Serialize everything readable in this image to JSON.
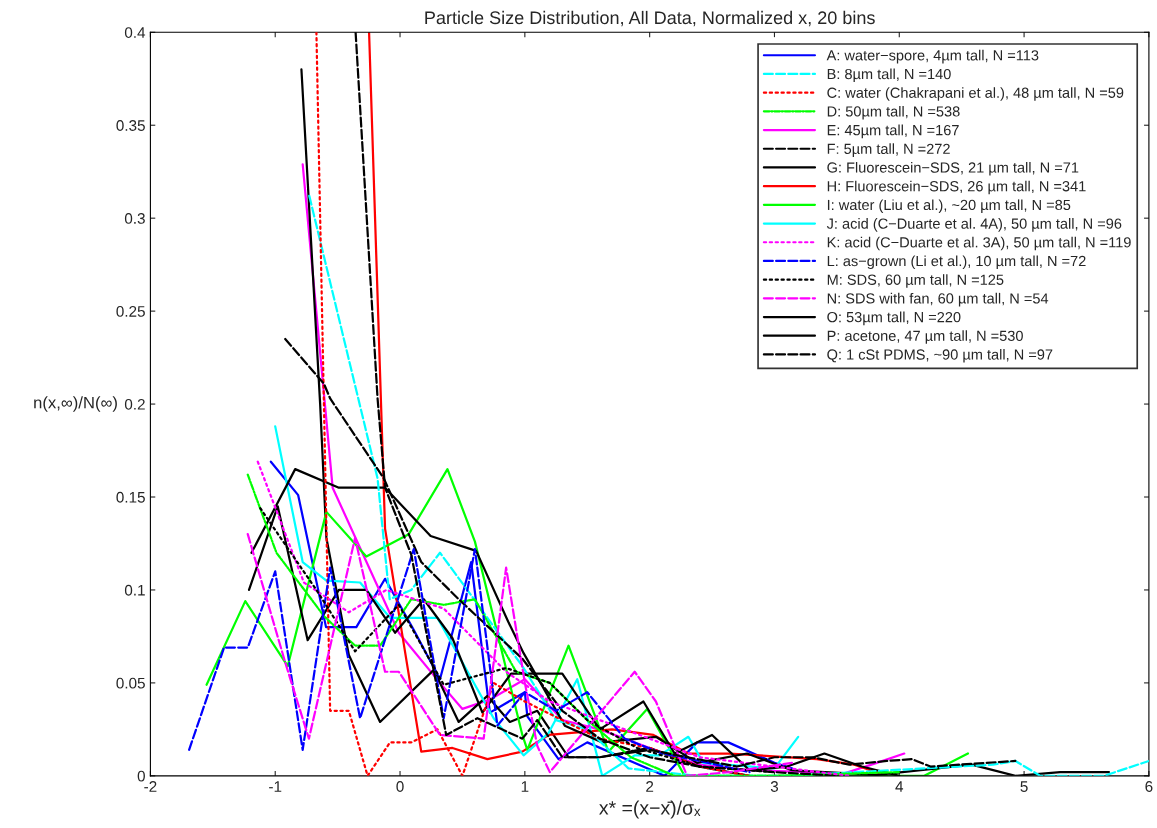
{
  "chart_data": {
    "type": "line",
    "title": "Particle Size Distribution, All Data, Normalized x, 20 bins",
    "xlabel": "x* =(x−x̄)/σₓ",
    "ylabel": "n(x,∞)/N(∞)",
    "xlim": [
      -2,
      6
    ],
    "xticks": [
      -2,
      -1,
      0,
      1,
      2,
      3,
      4,
      5,
      6
    ],
    "ylim": [
      0,
      0.4
    ],
    "yticks": [
      0,
      0.05,
      0.1,
      0.15,
      0.2,
      0.25,
      0.3,
      0.35,
      0.4
    ],
    "grid": false,
    "legend": "top right",
    "series": [
      {
        "name": "A: water−spore, 4µm tall, N =113",
        "color": "#0000ff",
        "line_style": "solid",
        "x": [
          -1.035,
          -0.816,
          -0.593,
          -0.35,
          -0.12,
          0.106,
          0.32,
          0.57,
          0.72,
          1.0,
          1.02,
          1.27,
          1.5,
          2.12,
          2.38,
          2.63,
          3.0,
          3.14
        ],
        "values": [
          0.169,
          0.151,
          0.08,
          0.08,
          0.106,
          0.079,
          0.052,
          0.115,
          0.034,
          0.045,
          0.032,
          0.009,
          0.018,
          0,
          0.018,
          0.018,
          0.007,
          0.004
        ]
      },
      {
        "name": "B: 8µm tall, N =140",
        "color": "#00ffff",
        "line_style": "dashed",
        "x": [
          -0.727,
          -0.18,
          -0.083,
          0.09,
          0.32,
          0.55,
          0.98,
          1.25,
          1.5,
          1.83,
          2.38,
          3.1,
          4.75,
          4.93,
          5.13,
          5.64,
          6.0
        ],
        "values": [
          0.312,
          0.16,
          0.095,
          0.1,
          0.12,
          0.099,
          0.059,
          0.03,
          0.025,
          0.004,
          0,
          0,
          0.006,
          0.008,
          0,
          0,
          0.008
        ]
      },
      {
        "name": "C: water (Chakrapani et al.), 48 µm tall, N =59",
        "color": "#ff0000",
        "line_style": "dotted",
        "x": [
          -0.67,
          -0.56,
          -0.41,
          -0.26,
          -0.08,
          0.09,
          0.3,
          0.5,
          0.75,
          1.0,
          1.3,
          1.6,
          2.0,
          2.4,
          2.8
        ],
        "values": [
          0.4,
          0.035,
          0.035,
          0,
          0.018,
          0.018,
          0.025,
          0,
          0.05,
          0.04,
          0.03,
          0.02,
          0.015,
          0.005,
          0
        ]
      },
      {
        "name": "D: 50µm tall, N =538",
        "color": "#00ff00",
        "line_style": "dashdot",
        "x": [
          -1.22,
          -0.99,
          -0.61,
          -0.36,
          -0.16,
          0.09,
          0.35,
          0.6,
          0.93,
          1.2,
          1.5,
          1.85,
          2.2,
          3.0,
          4.0
        ],
        "values": [
          0.162,
          0.12,
          0.086,
          0.07,
          0.07,
          0.095,
          0.092,
          0.095,
          0.056,
          0.05,
          0.03,
          0.01,
          0,
          0,
          0.002
        ]
      },
      {
        "name": "E: 45µm tall, N =167",
        "color": "#ff00ff",
        "line_style": "solid",
        "x": [
          -0.78,
          -0.54,
          -0.01,
          0.32,
          0.5,
          0.72,
          1.0,
          1.3,
          1.6,
          2.0,
          2.4,
          2.8,
          3.3,
          3.5,
          3.82,
          4.04
        ],
        "values": [
          0.329,
          0.155,
          0.077,
          0.05,
          0.036,
          0.041,
          0.052,
          0.03,
          0.025,
          0.015,
          0.006,
          0.003,
          0.002,
          0,
          0.007,
          0.012
        ]
      },
      {
        "name": "F: 5µm tall, N =272",
        "color": "#000000",
        "line_style": "dashed",
        "x": [
          -0.92,
          -0.61,
          -0.56,
          -0.13,
          0.17,
          0.47,
          0.98,
          1.3,
          1.6,
          2.0,
          2.4,
          3.0,
          3.5
        ],
        "values": [
          0.235,
          0.211,
          0.203,
          0.16,
          0.115,
          0.095,
          0.063,
          0.035,
          0.02,
          0.01,
          0.005,
          0.002,
          0
        ]
      },
      {
        "name": "G: Fluorescein−SDS, 21 µm tall, N =71",
        "color": "#000000",
        "line_style": "solid",
        "x": [
          -0.79,
          -0.64,
          -0.59,
          -0.41,
          -0.16,
          0.27,
          0.47,
          0.7,
          0.88,
          1.1,
          1.35,
          1.6,
          2.0,
          2.4,
          2.8
        ],
        "values": [
          0.38,
          0.2,
          0.128,
          0.065,
          0.029,
          0.057,
          0.029,
          0.043,
          0.029,
          0.035,
          0.01,
          0.01,
          0.015,
          0.005,
          0
        ]
      },
      {
        "name": "H: Fluorescein−SDS, 26 µm tall, N =341",
        "color": "#ff0000",
        "line_style": "solid",
        "x": [
          -0.248,
          -0.12,
          0.17,
          0.42,
          0.7,
          0.98,
          1.19,
          1.7,
          2.03,
          2.31,
          2.64,
          3.34,
          3.64,
          3.9
        ],
        "values": [
          0.4,
          0.133,
          0.013,
          0.015,
          0.009,
          0.013,
          0.022,
          0.025,
          0.022,
          0.012,
          0.012,
          0.009,
          0.006,
          0
        ]
      },
      {
        "name": "I: water (Liu et al.), ~20 µm tall, N =85",
        "color": "#00ff00",
        "line_style": "solid",
        "x": [
          -1.55,
          -1.24,
          -0.9,
          -0.59,
          -0.27,
          0.07,
          0.38,
          0.6,
          0.98,
          1.02,
          1.35,
          1.67,
          1.98,
          2.28,
          3.0,
          4.2,
          4.55
        ],
        "values": [
          0.049,
          0.094,
          0.059,
          0.142,
          0.118,
          0.13,
          0.165,
          0.126,
          0.022,
          0.014,
          0.07,
          0.013,
          0.036,
          0,
          0,
          0,
          0.012
        ]
      },
      {
        "name": "J: acid (C−Duarte et al. 4A), 50 µm tall, N =96",
        "color": "#00ffff",
        "line_style": "solid",
        "x": [
          -1.0,
          -0.78,
          -0.59,
          -0.32,
          -0.08,
          0.3,
          0.75,
          0.99,
          1.19,
          1.42,
          1.62,
          1.88,
          2.08,
          2.31,
          2.43,
          3.0,
          3.19
        ],
        "values": [
          0.188,
          0.115,
          0.105,
          0.104,
          0.085,
          0.085,
          0.031,
          0.011,
          0.023,
          0.052,
          0,
          0.011,
          0.011,
          0.021,
          0.007,
          0.004,
          0.021
        ]
      },
      {
        "name": "K: acid (C−Duarte et al. 3A), 50 µm tall, N =119",
        "color": "#ff00ff",
        "line_style": "dotted",
        "x": [
          -1.14,
          -0.77,
          -0.41,
          -0.11,
          0.35,
          0.85,
          1.2,
          1.6,
          2.0,
          2.4,
          3.0,
          3.6
        ],
        "values": [
          0.169,
          0.104,
          0.088,
          0.1,
          0.09,
          0.056,
          0.04,
          0.03,
          0.02,
          0.01,
          0.005,
          0
        ]
      },
      {
        "name": "L: as−grown (Li et al.), 10 µm tall, N =72",
        "color": "#0000ff",
        "line_style": "dashed",
        "x": [
          -1.69,
          -1.41,
          -1.22,
          -1.0,
          -0.78,
          -0.56,
          -0.32,
          0.11,
          0.35,
          0.6,
          0.78,
          1.0,
          1.25,
          1.5,
          1.8,
          2.1,
          2.4,
          2.8
        ],
        "values": [
          0.014,
          0.069,
          0.069,
          0.11,
          0.014,
          0.112,
          0.031,
          0.122,
          0.031,
          0.122,
          0.027,
          0.045,
          0.035,
          0.045,
          0.02,
          0.012,
          0.008,
          0.002
        ]
      },
      {
        "name": "M: SDS, 60 µm tall, N =125",
        "color": "#000000",
        "line_style": "dotted",
        "x": [
          -1.12,
          -0.66,
          -0.36,
          -0.01,
          0.35,
          0.85,
          1.2,
          1.5,
          1.9,
          2.4,
          3.0
        ],
        "values": [
          0.144,
          0.099,
          0.067,
          0.092,
          0.049,
          0.058,
          0.05,
          0.03,
          0.015,
          0.005,
          0.002
        ]
      },
      {
        "name": "N: SDS with fan, 60 µm tall, N =54",
        "color": "#ff00ff",
        "line_style": "dashed",
        "x": [
          -1.22,
          -0.92,
          -0.73,
          -0.36,
          -0.12,
          -0.01,
          0.32,
          0.67,
          0.85,
          1.0,
          1.1,
          1.2,
          1.88,
          2.05,
          2.3,
          2.64,
          3.14
        ],
        "values": [
          0.13,
          0.061,
          0.02,
          0.128,
          0.056,
          0.056,
          0.022,
          0.02,
          0.112,
          0.05,
          0.016,
          0.002,
          0.056,
          0.04,
          0,
          0.002,
          0.007
        ]
      },
      {
        "name": "O: 53µm tall, N =220",
        "color": "#000000",
        "line_style": "solid",
        "x": [
          -1.21,
          -0.98,
          -0.74,
          -0.49,
          -0.27,
          -0.04,
          0.19,
          0.42,
          0.66,
          0.89,
          1.3,
          1.6,
          1.95,
          2.2,
          2.5,
          2.8,
          3.1,
          3.4,
          3.7,
          4.0
        ],
        "values": [
          0.1,
          0.145,
          0.073,
          0.1,
          0.1,
          0.077,
          0.095,
          0.074,
          0.034,
          0.055,
          0.055,
          0.025,
          0.04,
          0.012,
          0.022,
          0.003,
          0.005,
          0.012,
          0.005,
          0
        ]
      },
      {
        "name": "P: acetone, 47 µm tall, N =530",
        "color": "#000000",
        "line_style": "solid",
        "x": [
          -1.19,
          -0.84,
          -0.49,
          -0.12,
          0.245,
          0.61,
          0.866,
          0.99,
          1.32,
          1.62,
          2.05,
          2.38,
          2.78,
          3.14,
          3.82,
          4.58,
          4.93,
          5.29,
          5.68
        ],
        "values": [
          0.12,
          0.165,
          0.155,
          0.155,
          0.129,
          0.121,
          0.083,
          0.066,
          0.027,
          0.018,
          0.021,
          0.007,
          0.012,
          0.003,
          0.0005,
          0.006,
          0,
          0.002,
          0.002
        ]
      },
      {
        "name": "Q: 1 cSt PDMS, ~90 µm tall, N =97",
        "color": "#000000",
        "line_style": "dashed",
        "x": [
          -0.356,
          -0.18,
          -0.12,
          0.09,
          0.37,
          0.62,
          0.98,
          1.1,
          1.3,
          1.6,
          2.0,
          2.3,
          2.7,
          3.0,
          3.3,
          3.6,
          3.9,
          4.1,
          4.25,
          4.93
        ],
        "values": [
          0.4,
          0.203,
          0.155,
          0.119,
          0.022,
          0.031,
          0.02,
          0.03,
          0.01,
          0.01,
          0.014,
          0.01,
          0.005,
          0.01,
          0.01,
          0.006,
          0.008,
          0.009,
          0.005,
          0.008
        ]
      }
    ]
  }
}
